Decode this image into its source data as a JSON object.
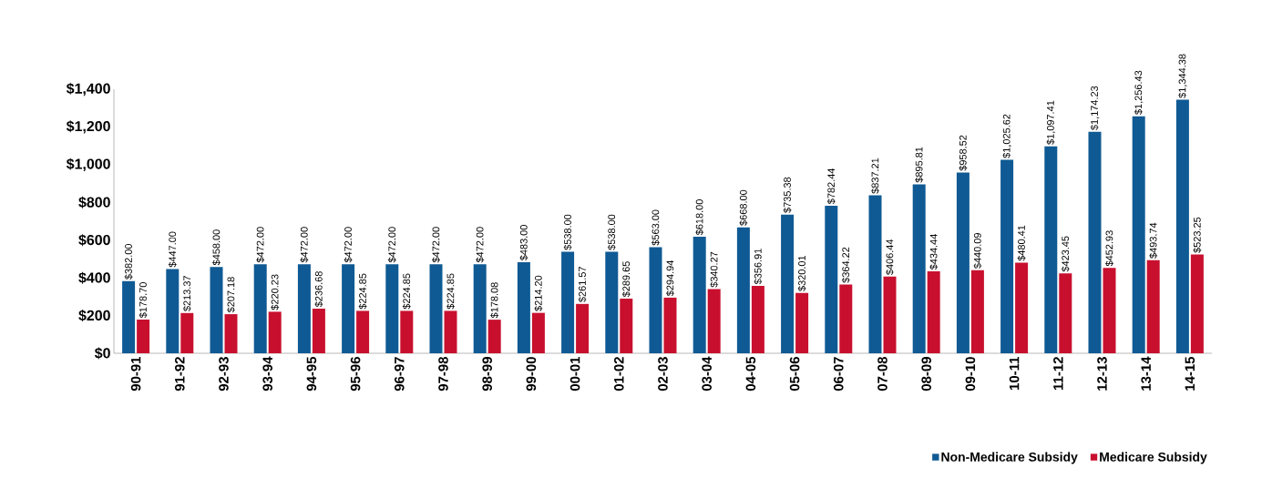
{
  "chart_data": {
    "type": "bar",
    "categories": [
      "90-91",
      "91-92",
      "92-93",
      "93-94",
      "94-95",
      "95-96",
      "96-97",
      "97-98",
      "98-99",
      "99-00",
      "00-01",
      "01-02",
      "02-03",
      "03-04",
      "04-05",
      "05-06",
      "06-07",
      "07-08",
      "08-09",
      "09-10",
      "10-11",
      "11-12",
      "12-13",
      "13-14",
      "14-15"
    ],
    "series": [
      {
        "name": "Non-Medicare Subsidy",
        "color": "#0f5a94",
        "values": [
          382,
          447,
          458,
          472,
          472,
          472,
          472,
          472,
          472,
          483,
          538,
          538,
          563,
          618,
          668,
          735.38,
          782.44,
          837.21,
          895.81,
          958.52,
          1025.62,
          1097.41,
          1174.23,
          1256.43,
          1344.38
        ],
        "value_labels": [
          "$382.00",
          "$447.00",
          "$458.00",
          "$472.00",
          "$472.00",
          "$472.00",
          "$472.00",
          "$472.00",
          "$472.00",
          "$483.00",
          "$538.00",
          "$538.00",
          "$563.00",
          "$618.00",
          "$668.00",
          "$735.38",
          "$782.44",
          "$837.21",
          "$895.81",
          "$958.52",
          "$1,025.62",
          "$1,097.41",
          "$1,174.23",
          "$1,256.43",
          "$1,344.38"
        ]
      },
      {
        "name": "Medicare Subsidy",
        "color": "#c8102e",
        "values": [
          178.7,
          213.37,
          207.18,
          220.23,
          236.68,
          224.85,
          224.85,
          224.85,
          178.08,
          214.2,
          261.57,
          289.65,
          294.94,
          340.27,
          356.91,
          320.01,
          364.22,
          406.44,
          434.44,
          440.09,
          480.41,
          423.45,
          452.93,
          493.74,
          523.25
        ],
        "value_labels": [
          "$178.70",
          "$213.37",
          "$207.18",
          "$220.23",
          "$236.68",
          "$224.85",
          "$224.85",
          "$224.85",
          "$178.08",
          "$214.20",
          "$261.57",
          "$289.65",
          "$294.94",
          "$340.27",
          "$356.91",
          "$320.01",
          "$364.22",
          "$406.44",
          "$434.44",
          "$440.09",
          "$480.41",
          "$423.45",
          "$452.93",
          "$493.74",
          "$523.25"
        ]
      }
    ],
    "ylim": [
      0,
      1400
    ],
    "yticks": [
      {
        "value": 0,
        "label": "$0"
      },
      {
        "value": 200,
        "label": "$200"
      },
      {
        "value": 400,
        "label": "$400"
      },
      {
        "value": 600,
        "label": "$600"
      },
      {
        "value": 800,
        "label": "$800"
      },
      {
        "value": 1000,
        "label": "$1,000"
      },
      {
        "value": 1200,
        "label": "$1,200"
      },
      {
        "value": 1400,
        "label": "$1,400"
      }
    ],
    "legend": "bottom right"
  }
}
